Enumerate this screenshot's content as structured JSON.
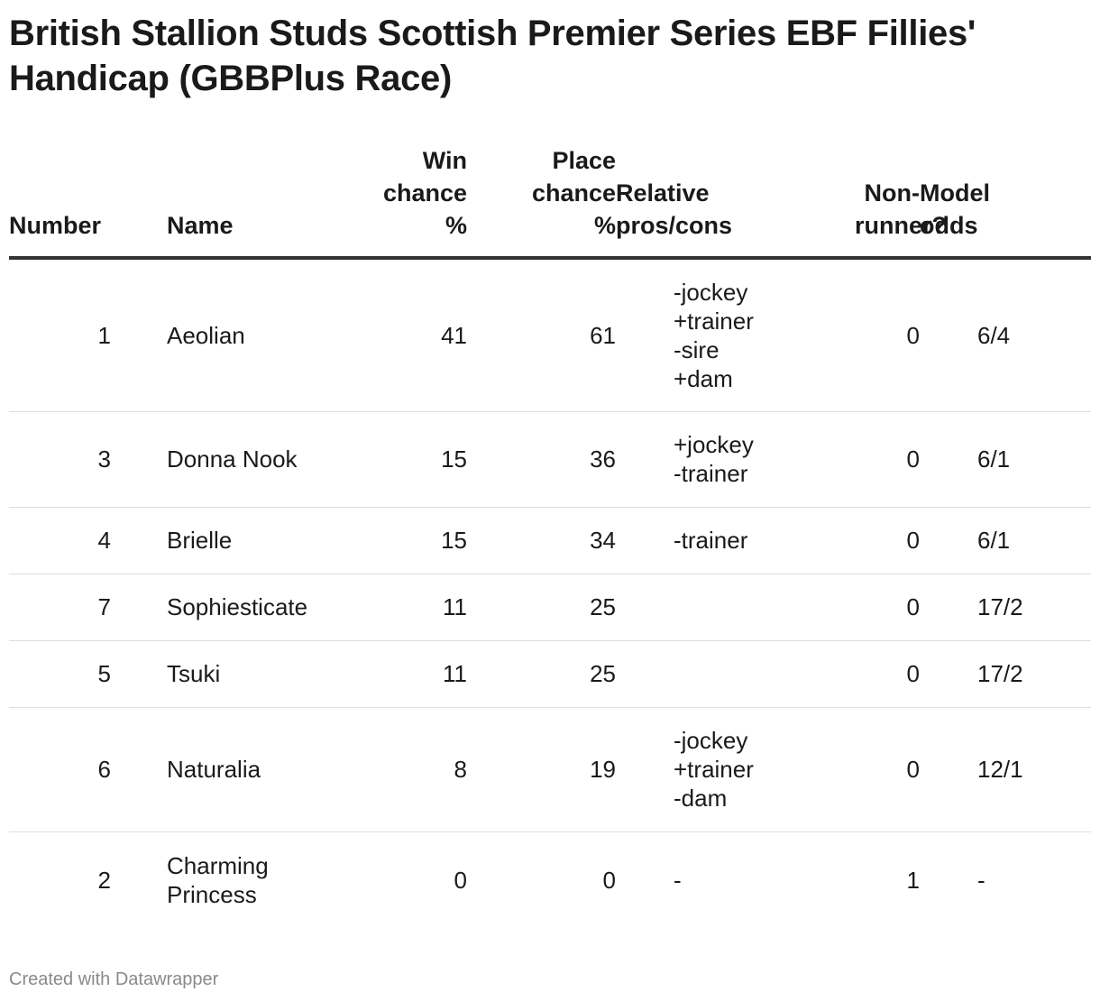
{
  "title": "British Stallion Studs Scottish Premier Series EBF Fillies' Handicap (GBBPlus Race)",
  "footer": "Created with Datawrapper",
  "colors": {
    "text": "#1a1a1a",
    "header_rule": "#333333",
    "row_rule": "#dddddd",
    "footer": "#8a8a8a"
  },
  "chart_data": {
    "type": "table",
    "columns": [
      "Number",
      "Name",
      "Win chance %",
      "Place chance %",
      "Relative pros/cons",
      "Non-runner?",
      "Model odds"
    ],
    "rows": [
      {
        "number": "1",
        "name": "Aeolian",
        "win": "41",
        "place": "61",
        "relative": "-jockey\n+trainer\n-sire\n+dam",
        "non_runner": "0",
        "odds": "6/4"
      },
      {
        "number": "3",
        "name": "Donna Nook",
        "win": "15",
        "place": "36",
        "relative": "+jockey\n-trainer",
        "non_runner": "0",
        "odds": "6/1"
      },
      {
        "number": "4",
        "name": "Brielle",
        "win": "15",
        "place": "34",
        "relative": "-trainer",
        "non_runner": "0",
        "odds": "6/1"
      },
      {
        "number": "7",
        "name": "Sophiesticate",
        "win": "11",
        "place": "25",
        "relative": "",
        "non_runner": "0",
        "odds": "17/2"
      },
      {
        "number": "5",
        "name": "Tsuki",
        "win": "11",
        "place": "25",
        "relative": "",
        "non_runner": "0",
        "odds": "17/2"
      },
      {
        "number": "6",
        "name": "Naturalia",
        "win": "8",
        "place": "19",
        "relative": "-jockey\n+trainer\n-dam",
        "non_runner": "0",
        "odds": "12/1"
      },
      {
        "number": "2",
        "name": "Charming Princess",
        "win": "0",
        "place": "0",
        "relative": "-",
        "non_runner": "1",
        "odds": "-"
      }
    ]
  }
}
